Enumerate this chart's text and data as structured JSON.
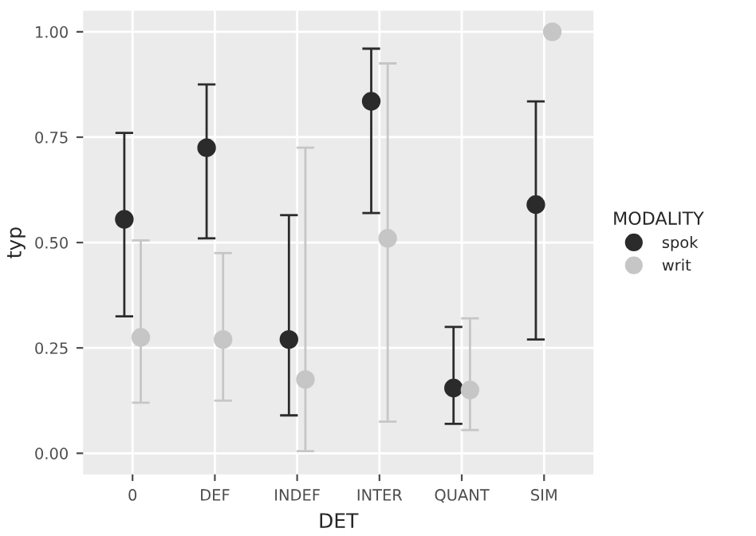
{
  "chart_data": {
    "type": "scatter",
    "xlabel": "DET",
    "ylabel": "typ",
    "legend_title": "MODALITY",
    "legend": "right",
    "grid": true,
    "marker": "circle",
    "categories": [
      "0",
      "DEF",
      "INDEF",
      "INTER",
      "QUANT",
      "SIM"
    ],
    "ylim": [
      -0.05,
      1.05
    ],
    "yticks": [
      {
        "value": 0,
        "label": "0.00"
      },
      {
        "value": 0.25,
        "label": "0.25"
      },
      {
        "value": 0.5,
        "label": "0.50"
      },
      {
        "value": 0.75,
        "label": "0.75"
      },
      {
        "value": 1,
        "label": "1.00"
      }
    ],
    "series": [
      {
        "name": "spok",
        "color": "#2b2b2b",
        "values": [
          0.555,
          0.725,
          0.27,
          0.835,
          0.155,
          0.59
        ],
        "errors": [
          [
            0.325,
            0.76
          ],
          [
            0.51,
            0.875
          ],
          [
            0.09,
            0.565
          ],
          [
            0.57,
            0.96
          ],
          [
            0.07,
            0.3
          ],
          [
            0.27,
            0.835
          ]
        ]
      },
      {
        "name": "writ",
        "color": "#c6c6c6",
        "values": [
          0.275,
          0.27,
          0.175,
          0.51,
          0.15,
          1.0
        ],
        "errors": [
          [
            0.12,
            0.505
          ],
          [
            0.125,
            0.475
          ],
          [
            0.005,
            0.725
          ],
          [
            0.075,
            0.925
          ],
          [
            0.055,
            0.32
          ],
          null
        ]
      }
    ]
  }
}
